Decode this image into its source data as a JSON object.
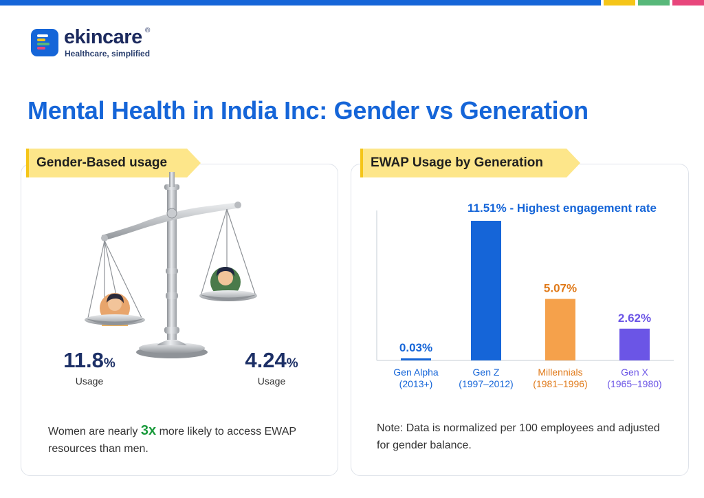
{
  "brand": {
    "name": "ekincare",
    "registered_mark": "®",
    "tagline": "Healthcare, simplified",
    "colors": {
      "blue": "#1565d8",
      "yellow": "#f5c518",
      "green": "#58b87a",
      "pink": "#e8467c"
    }
  },
  "title": "Mental Health in India Inc: Gender vs Generation",
  "gender_panel": {
    "heading": "Gender-Based usage",
    "women": {
      "value": "11.8",
      "unit": "%",
      "label": "Usage"
    },
    "men": {
      "value": "4.24",
      "unit": "%",
      "label": "Usage"
    },
    "blurb_before": "Women are nearly ",
    "blurb_highlight": "3x",
    "blurb_after": " more likely to access EWAP resources than men."
  },
  "generation_panel": {
    "heading": "EWAP Usage by Generation",
    "note": "Note: Data is normalized per 100 employees and adjusted for gender balance."
  },
  "chart_data": {
    "type": "bar",
    "title": "",
    "xlabel": "",
    "ylabel": "",
    "ylim": [
      0,
      11.51
    ],
    "grid": false,
    "annotation": "11.51% - Highest engagement rate",
    "categories": [
      {
        "name": "Gen Alpha",
        "years": "(2013+)",
        "value": 0.03,
        "value_label": "0.03%",
        "color": "#1565d8"
      },
      {
        "name": "Gen Z",
        "years": "(1997–2012)",
        "value": 11.51,
        "value_label": "",
        "color": "#1565d8"
      },
      {
        "name": "Millennials",
        "years": "(1981–1996)",
        "value": 5.07,
        "value_label": "5.07%",
        "color": "#f5a14b"
      },
      {
        "name": "Gen X",
        "years": "(1965–1980)",
        "value": 2.62,
        "value_label": "2.62%",
        "color": "#6b55e6"
      }
    ],
    "label_colors": [
      "#1565d8",
      "#1565d8",
      "#e07a1a",
      "#6b55e6"
    ]
  }
}
